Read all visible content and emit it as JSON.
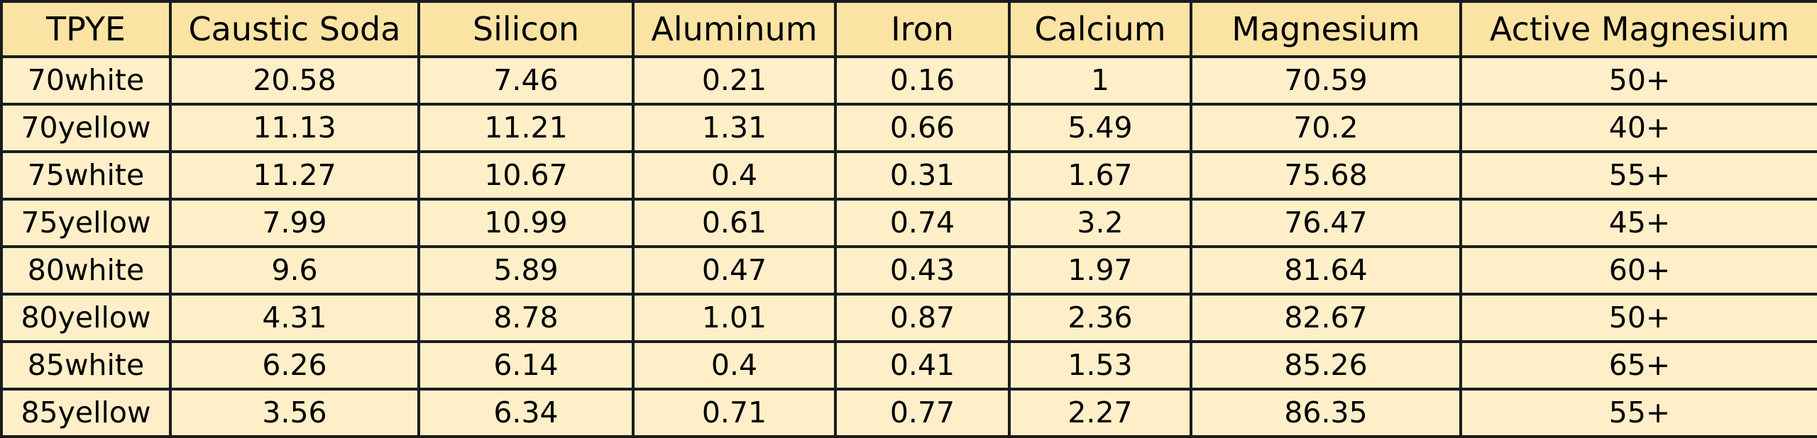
{
  "table": {
    "headers": [
      "TPYE",
      "Caustic Soda",
      "Silicon",
      "Aluminum",
      "Iron",
      "Calcium",
      "Magnesium",
      "Active Magnesium"
    ],
    "rows": [
      [
        "70white",
        "20.58",
        "7.46",
        "0.21",
        "0.16",
        "1",
        "70.59",
        "50+"
      ],
      [
        "70yellow",
        "11.13",
        "11.21",
        "1.31",
        "0.66",
        "5.49",
        "70.2",
        "40+"
      ],
      [
        "75white",
        "11.27",
        "10.67",
        "0.4",
        "0.31",
        "1.67",
        "75.68",
        "55+"
      ],
      [
        "75yellow",
        "7.99",
        "10.99",
        "0.61",
        "0.74",
        "3.2",
        "76.47",
        "45+"
      ],
      [
        "80white",
        "9.6",
        "5.89",
        "0.47",
        "0.43",
        "1.97",
        "81.64",
        "60+"
      ],
      [
        "80yellow",
        "4.31",
        "8.78",
        "1.01",
        "0.87",
        "2.36",
        "82.67",
        "50+"
      ],
      [
        "85white",
        "6.26",
        "6.14",
        "0.4",
        "0.41",
        "1.53",
        "85.26",
        "65+"
      ],
      [
        "85yellow",
        "3.56",
        "6.34",
        "0.71",
        "0.77",
        "2.27",
        "86.35",
        "55+"
      ]
    ]
  },
  "colors": {
    "header_bg": "#fbe4a3",
    "cell_bg": "#ffefc9",
    "border": "#1b1b1b"
  }
}
